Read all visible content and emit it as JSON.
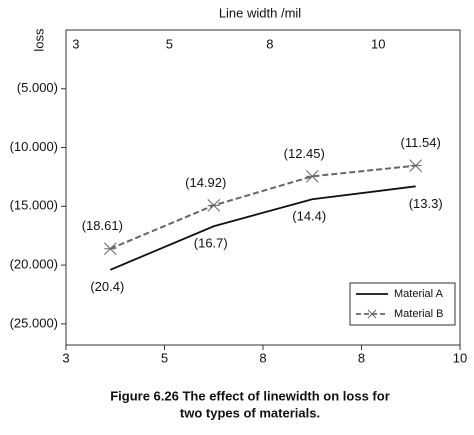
{
  "chart_data": {
    "type": "line",
    "x_label": "Line width /mil",
    "y_label": "loss",
    "caption": [
      "Figure 6.26 The effect of linewidth on loss for",
      "two types of materials."
    ],
    "x": [
      0.45,
      1.5,
      2.5,
      3.55
    ],
    "xlim": [
      0,
      4
    ],
    "xticks": [
      {
        "value": 0,
        "label": "3"
      },
      {
        "value": 1,
        "label": "5"
      },
      {
        "value": 2,
        "label": "8"
      },
      {
        "value": 3,
        "label": "8"
      },
      {
        "value": 4,
        "label": "10"
      }
    ],
    "x2ticks": [
      {
        "value": 0.1,
        "label": "3"
      },
      {
        "value": 1.05,
        "label": "5"
      },
      {
        "value": 2.07,
        "label": "8"
      },
      {
        "value": 3.17,
        "label": "10"
      }
    ],
    "ylim": [
      -26.8,
      0
    ],
    "yticks": [
      {
        "value": -5,
        "label": "(5.000)"
      },
      {
        "value": -10,
        "label": "(10.000)"
      },
      {
        "value": -15,
        "label": "(15.000)"
      },
      {
        "value": -20,
        "label": "(20.000)"
      },
      {
        "value": -25,
        "label": "(25.000)"
      }
    ],
    "series": [
      {
        "name": "Material A",
        "color": "#111111",
        "dashed": false,
        "marker": false,
        "values": [
          -20.4,
          -16.7,
          -14.4,
          -13.3
        ],
        "value_labels": [
          "(20.4)",
          "(16.7)",
          "(14.4)",
          "(13.3)"
        ]
      },
      {
        "name": "Material B",
        "color": "#666666",
        "dashed": true,
        "marker": true,
        "values": [
          -18.61,
          -14.92,
          -12.45,
          -11.54
        ],
        "value_labels": [
          "(18.61)",
          "(14.92)",
          "(12.45)",
          "(11.54)"
        ]
      }
    ],
    "legend": "lower right"
  }
}
